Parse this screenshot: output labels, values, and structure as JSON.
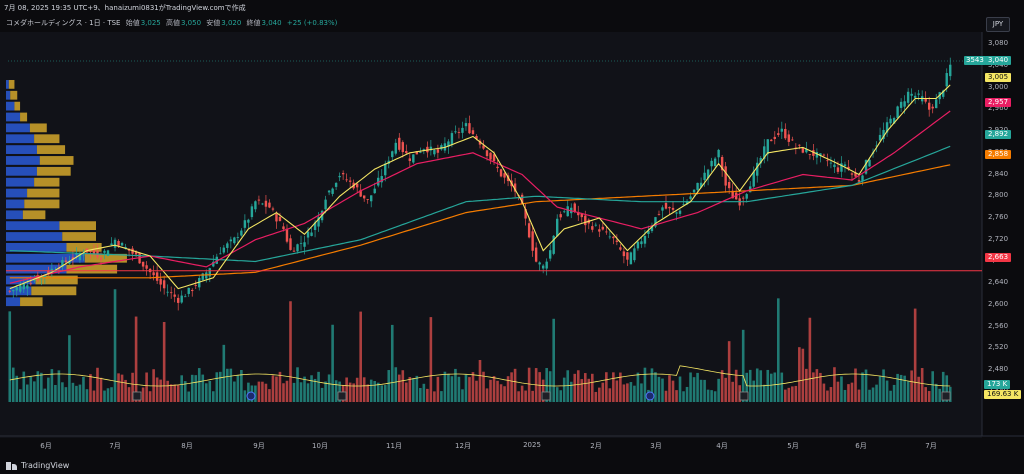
{
  "header": {
    "info_line": "7月 08, 2025 19:35 UTC+9、hanaizumi0831がTradingView.comで作成",
    "title": "コメダホールディングス · 1日 · TSE",
    "open_label": "始値",
    "open": "3,025",
    "high_label": "高値",
    "high": "3,050",
    "low_label": "安値",
    "low": "3,020",
    "close_label": "終値",
    "close": "3,040",
    "change": "+25 (+0.83%)"
  },
  "currency_button": "JPY",
  "footer": {
    "brand": "TradingView"
  },
  "price_tags": {
    "last_count": "3543",
    "last_price": "3,040",
    "ma_short": "3,005",
    "ma_mid": "2,957",
    "ma_long": "2,892",
    "ma_longer": "2,858",
    "support": "2,663",
    "vol1": "173 K",
    "vol2": "169.63 K"
  },
  "colors": {
    "up": "#26a69a",
    "down": "#ef5350",
    "ma_short": "#f5e663",
    "ma_mid": "#e91e63",
    "ma_long": "#26a69a",
    "ma_longer": "#f57c00",
    "support": "#f23645",
    "vp_up": "#2a5bd7",
    "vp_down": "#d4a72c",
    "bg": "#0b0b0e"
  },
  "chart_data": {
    "type": "candlestick",
    "symbol": "コメダホールディングス",
    "interval": "1日",
    "exchange": "TSE",
    "y_ticks": [
      3080,
      3040,
      3000,
      2960,
      2920,
      2880,
      2840,
      2800,
      2760,
      2720,
      2680,
      2640,
      2600,
      2560,
      2520,
      2480,
      2440
    ],
    "y_tick_labels": [
      "3,080",
      "3,040",
      "3,000",
      "2,960",
      "2,920",
      "2,880",
      "2,840",
      "2,800",
      "2,760",
      "2,720",
      "2,680",
      "2,640",
      "2,600",
      "2,560",
      "2,520",
      "2,480",
      "2,440"
    ],
    "x_ticks": [
      "6月",
      "7月",
      "8月",
      "9月",
      "10月",
      "11月",
      "12月",
      "2025",
      "2月",
      "3月",
      "4月",
      "5月",
      "6月",
      "7月"
    ],
    "ylim": [
      2425,
      3095
    ],
    "horizontal_line": 2663,
    "close_path": [
      [
        0,
        2625
      ],
      [
        8,
        2650
      ],
      [
        16,
        2680
      ],
      [
        22,
        2700
      ],
      [
        26,
        2690
      ],
      [
        30,
        2720
      ],
      [
        36,
        2690
      ],
      [
        40,
        2660
      ],
      [
        44,
        2630
      ],
      [
        48,
        2610
      ],
      [
        52,
        2630
      ],
      [
        56,
        2660
      ],
      [
        60,
        2700
      ],
      [
        64,
        2720
      ],
      [
        68,
        2760
      ],
      [
        70,
        2790
      ],
      [
        74,
        2780
      ],
      [
        78,
        2740
      ],
      [
        80,
        2700
      ],
      [
        84,
        2720
      ],
      [
        88,
        2760
      ],
      [
        90,
        2800
      ],
      [
        94,
        2840
      ],
      [
        98,
        2820
      ],
      [
        102,
        2790
      ],
      [
        106,
        2840
      ],
      [
        110,
        2900
      ],
      [
        114,
        2870
      ],
      [
        118,
        2890
      ],
      [
        122,
        2880
      ],
      [
        126,
        2910
      ],
      [
        130,
        2930
      ],
      [
        134,
        2900
      ],
      [
        136,
        2880
      ],
      [
        140,
        2840
      ],
      [
        144,
        2810
      ],
      [
        146,
        2780
      ],
      [
        148,
        2730
      ],
      [
        150,
        2680
      ],
      [
        152,
        2670
      ],
      [
        154,
        2700
      ],
      [
        156,
        2760
      ],
      [
        160,
        2780
      ],
      [
        164,
        2750
      ],
      [
        168,
        2740
      ],
      [
        172,
        2720
      ],
      [
        176,
        2680
      ],
      [
        178,
        2700
      ],
      [
        182,
        2740
      ],
      [
        186,
        2780
      ],
      [
        190,
        2770
      ],
      [
        194,
        2800
      ],
      [
        198,
        2840
      ],
      [
        200,
        2860
      ],
      [
        202,
        2880
      ],
      [
        204,
        2820
      ],
      [
        206,
        2800
      ],
      [
        208,
        2790
      ],
      [
        210,
        2810
      ],
      [
        214,
        2870
      ],
      [
        216,
        2900
      ],
      [
        220,
        2920
      ],
      [
        224,
        2890
      ],
      [
        228,
        2880
      ],
      [
        232,
        2870
      ],
      [
        236,
        2850
      ],
      [
        238,
        2860
      ],
      [
        240,
        2840
      ],
      [
        242,
        2830
      ],
      [
        244,
        2860
      ],
      [
        248,
        2910
      ],
      [
        252,
        2950
      ],
      [
        256,
        2990
      ],
      [
        260,
        2980
      ],
      [
        262,
        2960
      ],
      [
        264,
        2975
      ],
      [
        266,
        3000
      ],
      [
        268,
        3040
      ]
    ],
    "ma_short": [
      [
        0,
        2630
      ],
      [
        12,
        2660
      ],
      [
        22,
        2700
      ],
      [
        30,
        2710
      ],
      [
        40,
        2690
      ],
      [
        48,
        2630
      ],
      [
        58,
        2650
      ],
      [
        68,
        2740
      ],
      [
        76,
        2770
      ],
      [
        84,
        2730
      ],
      [
        94,
        2800
      ],
      [
        104,
        2850
      ],
      [
        114,
        2880
      ],
      [
        124,
        2890
      ],
      [
        132,
        2910
      ],
      [
        138,
        2880
      ],
      [
        146,
        2790
      ],
      [
        152,
        2700
      ],
      [
        158,
        2740
      ],
      [
        168,
        2760
      ],
      [
        176,
        2700
      ],
      [
        184,
        2750
      ],
      [
        194,
        2790
      ],
      [
        202,
        2860
      ],
      [
        208,
        2810
      ],
      [
        216,
        2880
      ],
      [
        226,
        2890
      ],
      [
        236,
        2860
      ],
      [
        242,
        2840
      ],
      [
        250,
        2920
      ],
      [
        258,
        2980
      ],
      [
        264,
        2980
      ],
      [
        268,
        3005
      ]
    ],
    "ma_mid": [
      [
        0,
        2640
      ],
      [
        20,
        2670
      ],
      [
        40,
        2690
      ],
      [
        56,
        2670
      ],
      [
        70,
        2720
      ],
      [
        84,
        2750
      ],
      [
        100,
        2810
      ],
      [
        116,
        2860
      ],
      [
        132,
        2880
      ],
      [
        146,
        2840
      ],
      [
        156,
        2780
      ],
      [
        168,
        2760
      ],
      [
        180,
        2740
      ],
      [
        196,
        2770
      ],
      [
        210,
        2810
      ],
      [
        226,
        2840
      ],
      [
        240,
        2830
      ],
      [
        252,
        2880
      ],
      [
        268,
        2957
      ]
    ],
    "ma_long": [
      [
        0,
        2700
      ],
      [
        40,
        2690
      ],
      [
        70,
        2680
      ],
      [
        100,
        2720
      ],
      [
        130,
        2790
      ],
      [
        150,
        2800
      ],
      [
        180,
        2790
      ],
      [
        210,
        2790
      ],
      [
        240,
        2820
      ],
      [
        268,
        2892
      ]
    ],
    "ma_longer": [
      [
        0,
        2650
      ],
      [
        40,
        2650
      ],
      [
        70,
        2660
      ],
      [
        100,
        2710
      ],
      [
        130,
        2770
      ],
      [
        150,
        2790
      ],
      [
        180,
        2800
      ],
      [
        210,
        2810
      ],
      [
        240,
        2820
      ],
      [
        268,
        2858
      ]
    ],
    "volume_profile": [
      {
        "price": 3005,
        "up": 2,
        "down": 4
      },
      {
        "price": 2985,
        "up": 3,
        "down": 5
      },
      {
        "price": 2965,
        "up": 6,
        "down": 4
      },
      {
        "price": 2945,
        "up": 10,
        "down": 5
      },
      {
        "price": 2925,
        "up": 17,
        "down": 12
      },
      {
        "price": 2905,
        "up": 20,
        "down": 18
      },
      {
        "price": 2885,
        "up": 22,
        "down": 20
      },
      {
        "price": 2865,
        "up": 24,
        "down": 24
      },
      {
        "price": 2845,
        "up": 22,
        "down": 24
      },
      {
        "price": 2825,
        "up": 20,
        "down": 18
      },
      {
        "price": 2805,
        "up": 15,
        "down": 23
      },
      {
        "price": 2785,
        "up": 13,
        "down": 25
      },
      {
        "price": 2765,
        "up": 12,
        "down": 16
      },
      {
        "price": 2745,
        "up": 38,
        "down": 26
      },
      {
        "price": 2725,
        "up": 40,
        "down": 24
      },
      {
        "price": 2705,
        "up": 43,
        "down": 25
      },
      {
        "price": 2685,
        "up": 56,
        "down": 30
      },
      {
        "price": 2665,
        "up": 43,
        "down": 36
      },
      {
        "price": 2645,
        "up": 21,
        "down": 30
      },
      {
        "price": 2625,
        "up": 18,
        "down": 32
      },
      {
        "price": 2605,
        "up": 10,
        "down": 16
      }
    ],
    "volume_avg": "169.63 K",
    "volume_last": "173 K"
  }
}
